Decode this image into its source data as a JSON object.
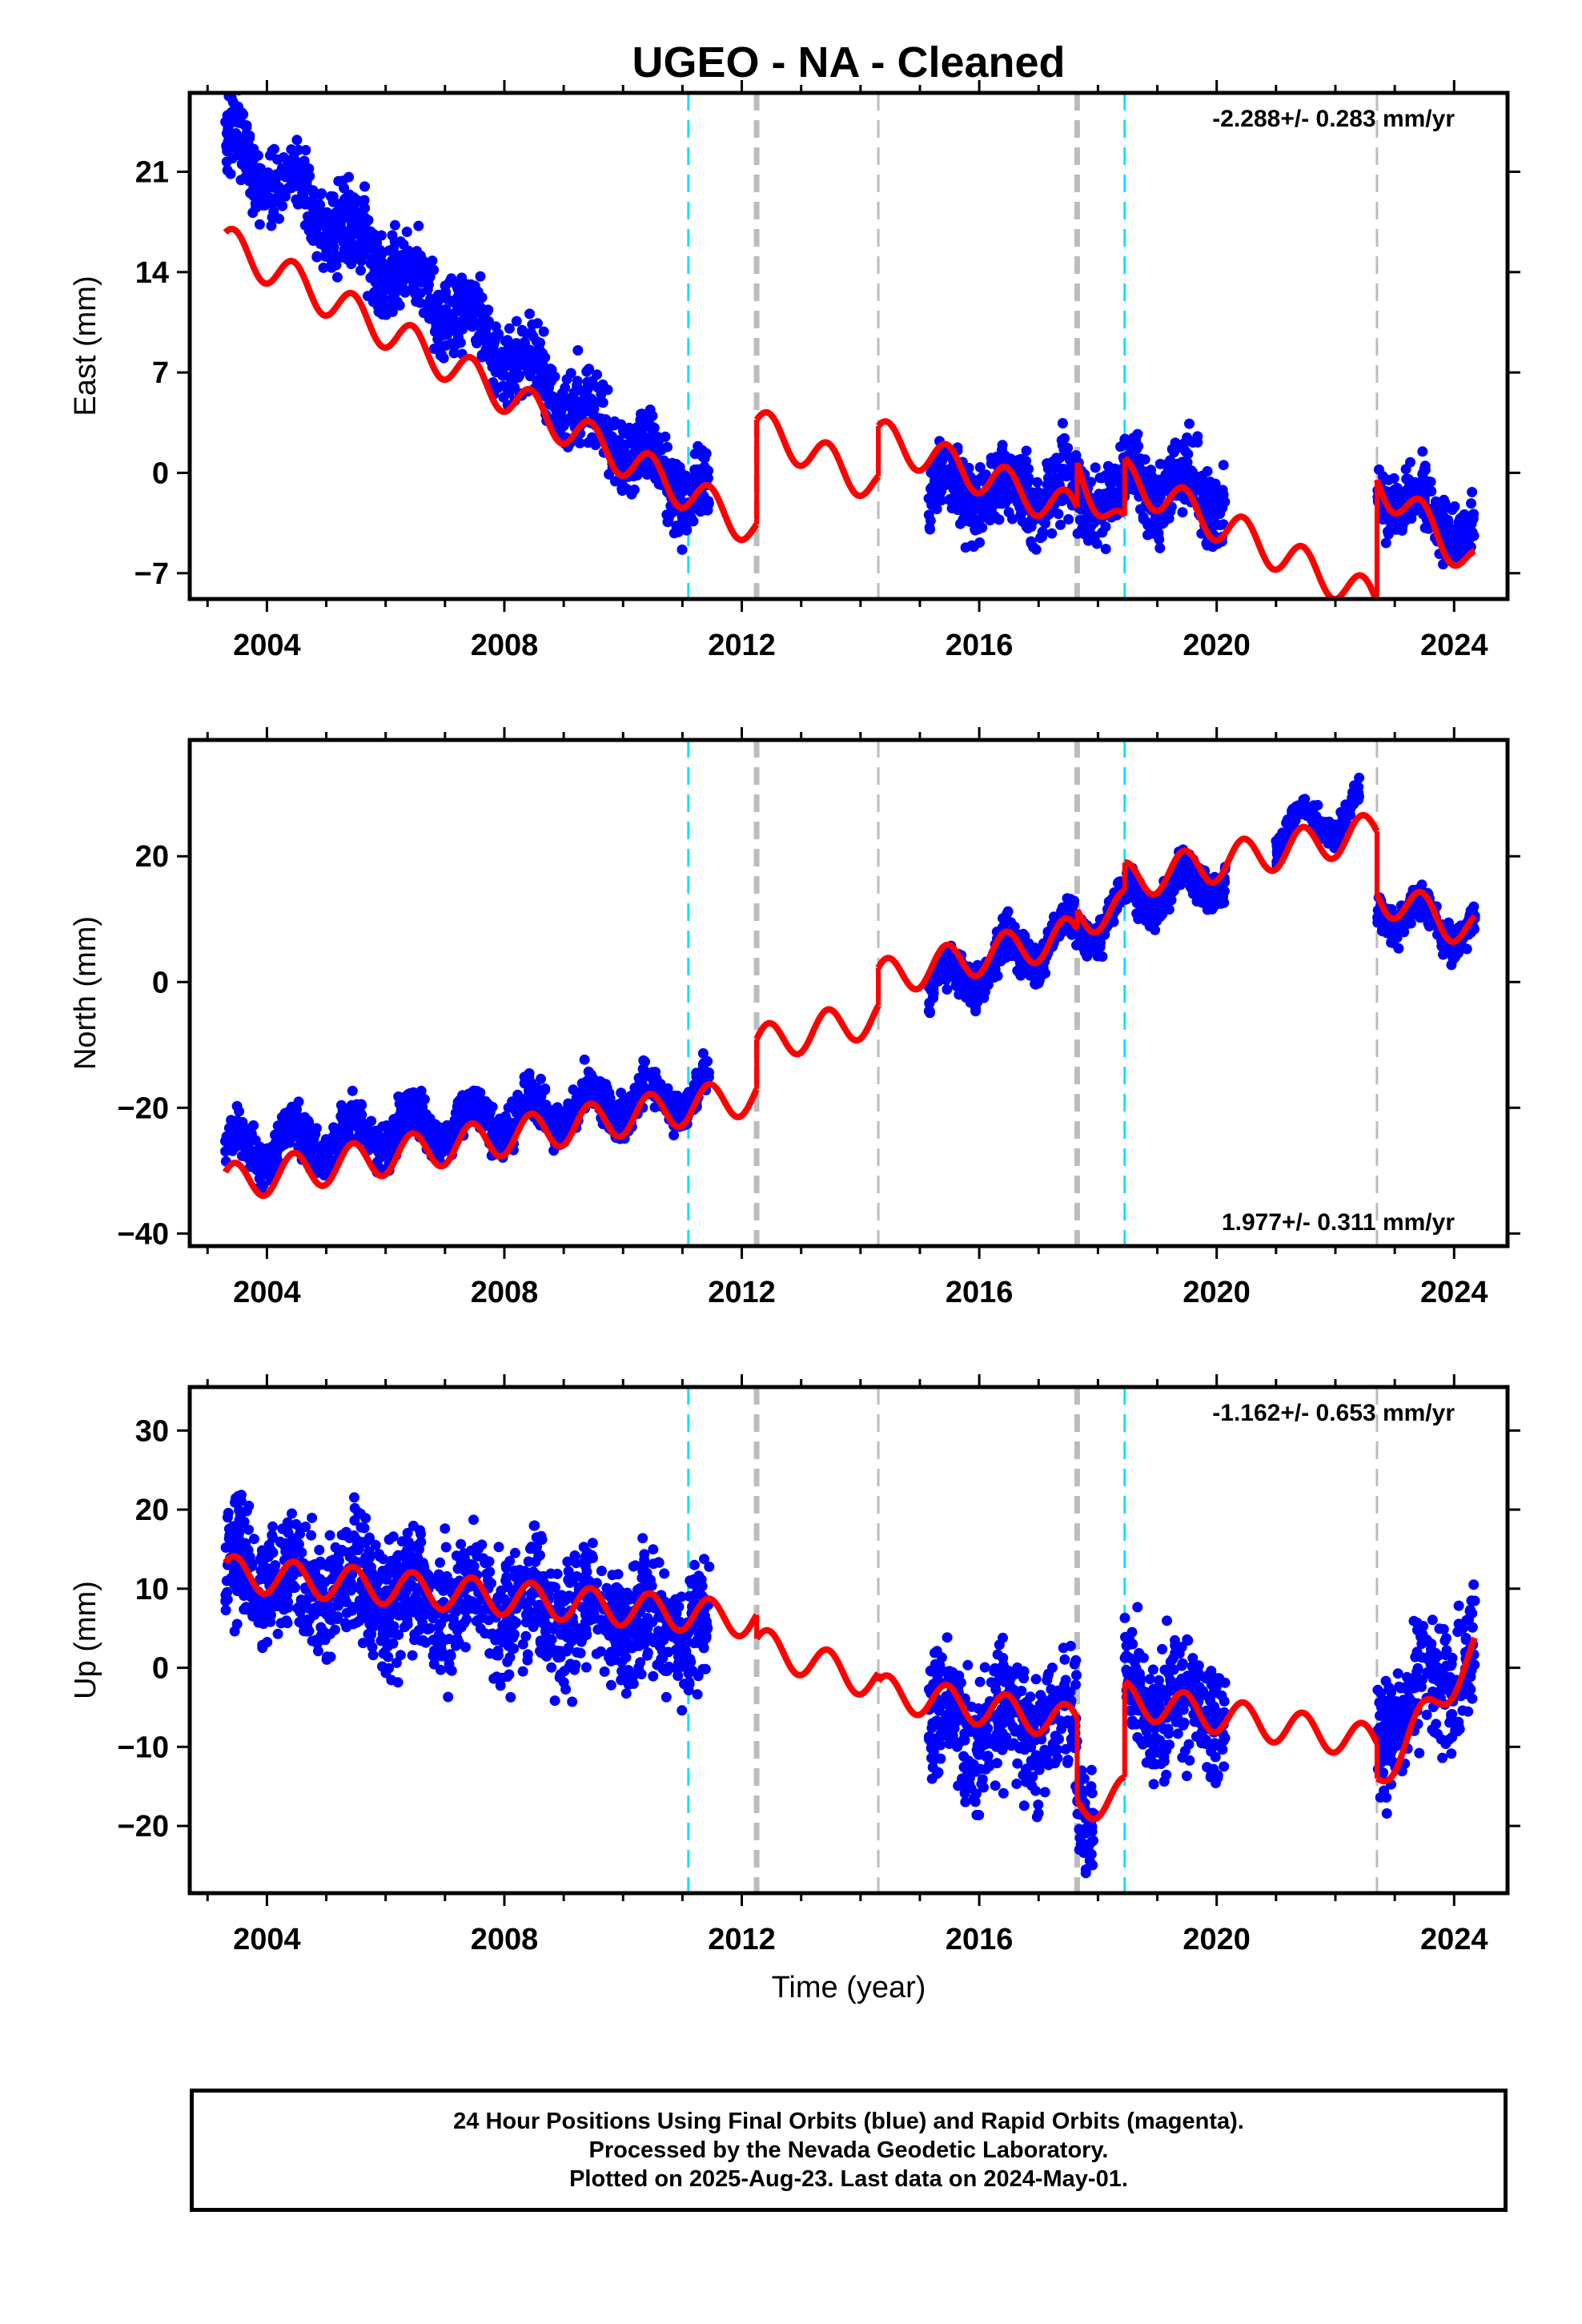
{
  "title": "UGEO  - NA - Cleaned",
  "footer": {
    "line1": "24 Hour Positions Using Final Orbits (blue) and Rapid Orbits (magenta).",
    "line2": "Processed by the Nevada Geodetic Laboratory.",
    "line3": "Plotted on 2025-Aug-23. Last data on 2024-May-01."
  },
  "colors": {
    "data": "#0000ff",
    "model": "#ff0000",
    "equipment_change": "#00e5ff",
    "earthquake": "#bdbdbd"
  },
  "chart_data": [
    {
      "type": "scatter",
      "panel": "east",
      "ylabel": "East (mm)",
      "rate_text": "-2.288+/- 0.283 mm/yr",
      "xlim": [
        2002.7,
        2024.9
      ],
      "ylim": [
        -8.8,
        26.5
      ],
      "x_ticks": [
        2004,
        2008,
        2012,
        2016,
        2020,
        2024
      ],
      "y_ticks": [
        -7,
        0,
        7,
        14,
        21
      ],
      "steps_cyan": [
        2011.1,
        2018.45
      ],
      "steps_gray_thin": [
        2014.3,
        2022.7
      ],
      "steps_gray_thick": [
        2012.25,
        2017.65
      ],
      "data_segments": [
        {
          "x0": 2003.3,
          "x1": 2011.45,
          "y0": 23.0,
          "y1": -2.2,
          "spread": 2.6
        },
        {
          "x0": 2015.15,
          "x1": 2018.45,
          "y0": -1.2,
          "y1": -1.6,
          "spread": 2.6
        },
        {
          "x0": 2018.45,
          "x1": 2020.15,
          "y0": -0.2,
          "y1": -1.8,
          "spread": 2.6
        },
        {
          "x0": 2022.7,
          "x1": 2024.35,
          "y0": -1.0,
          "y1": -4.3,
          "spread": 2.2
        }
      ],
      "model": {
        "seasonal_amp": 1.3,
        "segments": [
          {
            "x0": 2003.3,
            "x1": 2012.25,
            "y0": 16.0,
            "y1": -4.0
          },
          {
            "x0": 2012.25,
            "x1": 2014.3,
            "y0": 3.3,
            "y1": -1.0
          },
          {
            "x0": 2014.3,
            "x1": 2017.65,
            "y0": 2.5,
            "y1": -2.8
          },
          {
            "x0": 2017.65,
            "x1": 2018.45,
            "y0": 0.3,
            "y1": -4.3
          },
          {
            "x0": 2018.45,
            "x1": 2022.7,
            "y0": -0.3,
            "y1": -9.0
          },
          {
            "x0": 2022.7,
            "x1": 2024.35,
            "y0": -0.5,
            "y1": -6.5
          }
        ]
      }
    },
    {
      "type": "scatter",
      "panel": "north",
      "ylabel": "North (mm)",
      "rate_text": "1.977+/- 0.311 mm/yr",
      "xlim": [
        2002.7,
        2024.9
      ],
      "ylim": [
        -42,
        38.5
      ],
      "x_ticks": [
        2004,
        2008,
        2012,
        2016,
        2020,
        2024
      ],
      "y_ticks": [
        -40,
        -20,
        0,
        20
      ],
      "steps_cyan": [
        2011.1,
        2018.45
      ],
      "steps_gray_thin": [
        2014.3,
        2022.7
      ],
      "steps_gray_thick": [
        2012.25,
        2017.65
      ],
      "data_segments": [
        {
          "x0": 2003.3,
          "x1": 2011.45,
          "y0": -27.0,
          "y1": -17.5,
          "spread": 3.4
        },
        {
          "x0": 2015.15,
          "x1": 2018.45,
          "y0": -1.5,
          "y1": 11.5,
          "spread": 3.2
        },
        {
          "x0": 2018.45,
          "x1": 2020.15,
          "y0": 13.0,
          "y1": 17.0,
          "spread": 3.0
        },
        {
          "x0": 2021.0,
          "x1": 2022.4,
          "y0": 23.5,
          "y1": 27.5,
          "spread": 2.0
        },
        {
          "x0": 2022.7,
          "x1": 2024.35,
          "y0": 12.0,
          "y1": 8.0,
          "spread": 2.8
        }
      ],
      "model": {
        "seasonal_amp": 3.0,
        "segments": [
          {
            "x0": 2003.3,
            "x1": 2012.25,
            "y0": -32.0,
            "y1": -18.0
          },
          {
            "x0": 2012.25,
            "x1": 2014.3,
            "y0": -10.0,
            "y1": -5.5
          },
          {
            "x0": 2014.3,
            "x1": 2017.65,
            "y0": 0.5,
            "y1": 7.5
          },
          {
            "x0": 2017.65,
            "x1": 2018.45,
            "y0": 10.5,
            "y1": 11.5
          },
          {
            "x0": 2018.45,
            "x1": 2022.7,
            "y0": 16.0,
            "y1": 24.0
          },
          {
            "x0": 2022.7,
            "x1": 2024.35,
            "y0": 14.0,
            "y1": 8.0
          }
        ]
      }
    },
    {
      "type": "scatter",
      "panel": "up",
      "ylabel": "Up (mm)",
      "xlabel": "Time (year)",
      "rate_text": "-1.162+/- 0.653 mm/yr",
      "xlim": [
        2002.7,
        2024.9
      ],
      "ylim": [
        -28.5,
        35.5
      ],
      "x_ticks": [
        2004,
        2008,
        2012,
        2016,
        2020,
        2024
      ],
      "y_ticks": [
        -20,
        -10,
        0,
        10,
        20,
        30
      ],
      "steps_cyan": [
        2011.1,
        2018.45
      ],
      "steps_gray_thin": [
        2014.3,
        2022.7
      ],
      "steps_gray_thick": [
        2012.25,
        2017.65
      ],
      "data_segments": [
        {
          "x0": 2003.3,
          "x1": 2011.45,
          "y0": 12.0,
          "y1": 5.0,
          "spread": 8.0
        },
        {
          "x0": 2015.15,
          "x1": 2017.65,
          "y0": -7.0,
          "y1": -8.0,
          "spread": 8.0
        },
        {
          "x0": 2017.65,
          "x1": 2017.95,
          "y0": -18.0,
          "y1": -18.0,
          "spread": 6.0
        },
        {
          "x0": 2018.45,
          "x1": 2020.15,
          "y0": -3.0,
          "y1": -6.0,
          "spread": 8.0
        },
        {
          "x0": 2022.7,
          "x1": 2024.35,
          "y0": -8.0,
          "y1": 2.0,
          "spread": 8.0
        }
      ],
      "model": {
        "seasonal_amp": 2.2,
        "segments": [
          {
            "x0": 2003.3,
            "x1": 2012.25,
            "y0": 12.0,
            "y1": 6.0
          },
          {
            "x0": 2012.25,
            "x1": 2014.3,
            "y0": 3.0,
            "y1": -2.0
          },
          {
            "x0": 2014.3,
            "x1": 2017.65,
            "y0": -3.0,
            "y1": -7.0
          },
          {
            "x0": 2017.65,
            "x1": 2018.45,
            "y0": -17.5,
            "y1": -16.0
          },
          {
            "x0": 2018.45,
            "x1": 2022.7,
            "y0": -4.0,
            "y1": -9.5
          },
          {
            "x0": 2022.7,
            "x1": 2024.35,
            "y0": -14.0,
            "y1": 2.0
          }
        ]
      }
    }
  ]
}
